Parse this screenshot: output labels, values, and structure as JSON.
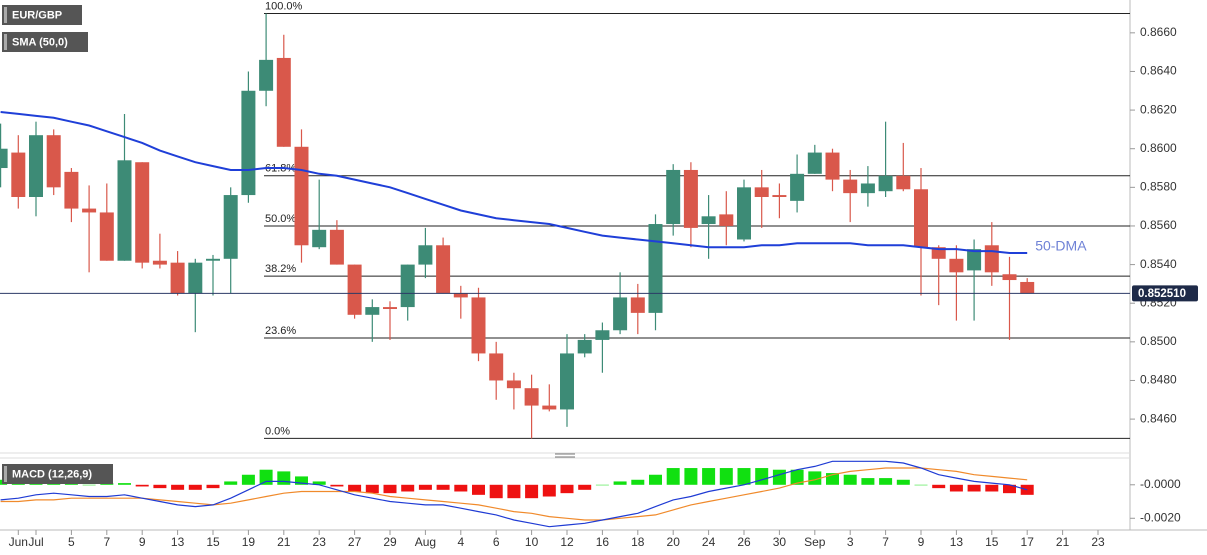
{
  "chart_data": [
    {
      "type": "candlestick",
      "title": "EUR/GBP",
      "categories": [
        null,
        "Jun",
        "Jul",
        null,
        "5",
        null,
        "7",
        null,
        "9",
        null,
        "13",
        null,
        "15",
        null,
        "19",
        null,
        "21",
        null,
        "23",
        null,
        "27",
        null,
        "29",
        null,
        "Aug",
        null,
        "4",
        null,
        "6",
        null,
        "10",
        null,
        "12",
        null,
        "16",
        null,
        "18",
        null,
        "20",
        null,
        "24",
        null,
        "26",
        null,
        "30",
        null,
        "Sep",
        null,
        "3",
        null,
        "7",
        null,
        "9",
        null,
        "13",
        null,
        "15",
        null,
        "17",
        null,
        "21",
        null,
        "23"
      ],
      "open": [
        0.859,
        0.8598,
        0.8575,
        0.8607,
        0.8588,
        0.8569,
        0.8567,
        0.8542,
        0.8593,
        0.8542,
        0.8541,
        0.8525,
        0.8542,
        0.8543,
        0.8576,
        0.863,
        0.8647,
        0.8601,
        0.8549,
        0.8558,
        0.854,
        0.8514,
        0.8518,
        0.8518,
        0.854,
        0.855,
        0.8525,
        0.8523,
        0.8494,
        0.848,
        0.8476,
        0.8467,
        0.8465,
        0.8494,
        0.8501,
        0.8506,
        0.8523,
        0.8515,
        0.8561,
        0.8589,
        0.8561,
        0.8566,
        0.8553,
        0.858,
        0.8576,
        0.8573,
        0.8587,
        0.8598,
        0.8584,
        0.8577,
        0.8578,
        0.8586,
        0.8579,
        0.8549,
        0.8543,
        0.8537,
        0.855,
        0.8535,
        0.8531,
        null,
        null,
        null,
        null
      ],
      "high": [
        0.8613,
        0.8607,
        0.8614,
        0.861,
        0.859,
        0.8581,
        0.8582,
        0.8618,
        0.8593,
        0.8556,
        0.8547,
        0.8543,
        0.8545,
        0.858,
        0.864,
        0.867,
        0.8659,
        0.861,
        0.8584,
        0.8563,
        0.854,
        0.8522,
        0.8521,
        0.854,
        0.8559,
        0.8554,
        0.8529,
        0.8528,
        0.85,
        0.8484,
        0.8483,
        0.8478,
        0.8504,
        0.8504,
        0.851,
        0.8536,
        0.853,
        0.8566,
        0.8592,
        0.8593,
        0.8576,
        0.8578,
        0.8584,
        0.8589,
        0.8582,
        0.8597,
        0.8602,
        0.86,
        0.8589,
        0.8591,
        0.8614,
        0.8603,
        0.859,
        0.855,
        0.855,
        0.8553,
        0.8562,
        0.8544,
        0.8533,
        null,
        null,
        null,
        null
      ],
      "low": [
        0.858,
        0.8569,
        0.8565,
        0.8576,
        0.8562,
        0.8536,
        0.8542,
        0.8542,
        0.8538,
        0.8538,
        0.8524,
        0.8505,
        0.8524,
        0.8525,
        0.8572,
        0.8622,
        0.8601,
        0.8541,
        0.8548,
        0.854,
        0.8512,
        0.85,
        0.8501,
        0.8511,
        0.8533,
        0.8525,
        0.8512,
        0.849,
        0.847,
        0.8465,
        0.845,
        0.8464,
        0.8456,
        0.8492,
        0.8484,
        0.8504,
        0.8504,
        0.8506,
        0.8555,
        0.8549,
        0.8543,
        0.855,
        0.8552,
        0.8559,
        0.8564,
        0.8567,
        0.8587,
        0.8578,
        0.8562,
        0.857,
        0.8575,
        0.8578,
        0.8524,
        0.8519,
        0.8511,
        0.8511,
        0.8529,
        0.8501,
        0.8525,
        null,
        null,
        null,
        null
      ],
      "close": [
        0.86,
        0.8575,
        0.8607,
        0.858,
        0.8569,
        0.8567,
        0.8542,
        0.8594,
        0.8541,
        0.854,
        0.8525,
        0.8541,
        0.8543,
        0.8576,
        0.863,
        0.8646,
        0.8601,
        0.855,
        0.8558,
        0.854,
        0.8514,
        0.8518,
        0.8517,
        0.854,
        0.855,
        0.8525,
        0.8523,
        0.8494,
        0.848,
        0.8476,
        0.8467,
        0.8465,
        0.8494,
        0.8501,
        0.8506,
        0.8523,
        0.8515,
        0.8561,
        0.8589,
        0.8559,
        0.8565,
        0.856,
        0.858,
        0.8575,
        0.8575,
        0.8587,
        0.8598,
        0.8584,
        0.8577,
        0.8582,
        0.8586,
        0.8579,
        0.8549,
        0.8543,
        0.8536,
        0.8548,
        0.8536,
        0.8532,
        0.8525,
        null,
        null,
        null,
        null
      ],
      "up_color": "#3d8b76",
      "down_color": "#d9584b",
      "sma": {
        "name": "SMA (50,0)",
        "color": "#1f3fd8",
        "values": [
          0.8619,
          0.8618,
          0.8617,
          0.8616,
          0.8614,
          0.8612,
          0.8609,
          0.8606,
          0.8603,
          0.8599,
          0.8596,
          0.8593,
          0.8591,
          0.8589,
          0.8589,
          0.859,
          0.859,
          0.8589,
          0.8587,
          0.8586,
          0.8584,
          0.8582,
          0.858,
          0.8577,
          0.8574,
          0.8571,
          0.8568,
          0.8566,
          0.8564,
          0.8563,
          0.8562,
          0.8561,
          0.8559,
          0.8557,
          0.8555,
          0.8554,
          0.8553,
          0.8552,
          0.8551,
          0.855,
          0.8549,
          0.8549,
          0.8549,
          0.855,
          0.855,
          0.8551,
          0.8551,
          0.8551,
          0.8551,
          0.855,
          0.855,
          0.855,
          0.8549,
          0.8548,
          0.8548,
          0.8547,
          0.8547,
          0.8546,
          0.8546,
          null,
          null,
          null,
          null
        ]
      },
      "sma_annotation": "50-DMA",
      "fib_levels": [
        {
          "label": "100.0%",
          "value": 0.867
        },
        {
          "label": "61.8%",
          "value": 0.8586
        },
        {
          "label": "50.0%",
          "value": 0.856
        },
        {
          "label": "38.2%",
          "value": 0.8534
        },
        {
          "label": "23.6%",
          "value": 0.8502
        },
        {
          "label": "0.0%",
          "value": 0.845
        }
      ],
      "last_price": {
        "value": 0.85251,
        "label": "0.852510"
      },
      "ylim": [
        0.8444,
        0.8677
      ],
      "yticks": [
        {
          "value": 0.846,
          "label": "0.8460"
        },
        {
          "value": 0.848,
          "label": "0.8480"
        },
        {
          "value": 0.85,
          "label": "0.8500"
        },
        {
          "value": 0.852,
          "label": "0.8520"
        },
        {
          "value": 0.854,
          "label": "0.8540"
        },
        {
          "value": 0.856,
          "label": "0.8560"
        },
        {
          "value": 0.858,
          "label": "0.8580"
        },
        {
          "value": 0.86,
          "label": "0.8600"
        },
        {
          "value": 0.862,
          "label": "0.8620"
        },
        {
          "value": 0.864,
          "label": "0.8640"
        },
        {
          "value": 0.866,
          "label": "0.8660"
        }
      ],
      "grid": false
    },
    {
      "type": "macd",
      "title": "MACD (12,26,9)",
      "histogram": [
        0.0003,
        0.0001,
        0.0002,
        0.0001,
        0.0001,
        0.0,
        0.0001,
        0.0001,
        -0.0001,
        -0.0002,
        -0.0003,
        -0.0003,
        -0.0002,
        0.0002,
        0.0006,
        0.0009,
        0.0008,
        0.0005,
        0.0002,
        -0.0001,
        -0.0004,
        -0.0005,
        -0.0005,
        -0.0004,
        -0.0003,
        -0.0003,
        -0.0004,
        -0.0006,
        -0.0008,
        -0.0008,
        -0.0008,
        -0.0007,
        -0.0005,
        -0.0003,
        0.0,
        0.0002,
        0.0003,
        0.0006,
        0.001,
        0.001,
        0.001,
        0.001,
        0.001,
        0.001,
        0.0009,
        0.0009,
        0.0008,
        0.0007,
        0.0006,
        0.0004,
        0.0004,
        0.0003,
        0.0,
        -0.0002,
        -0.0004,
        -0.0004,
        -0.0004,
        -0.0005,
        -0.0006
      ],
      "macd": [
        -0.0009,
        -0.0008,
        -0.0006,
        -0.0005,
        -0.0006,
        -0.0007,
        -0.0007,
        -0.0006,
        -0.0008,
        -0.001,
        -0.0012,
        -0.0013,
        -0.0012,
        -0.0008,
        -0.0003,
        0.0002,
        0.0002,
        0.0001,
        0.0,
        -0.0003,
        -0.0006,
        -0.0008,
        -0.001,
        -0.0011,
        -0.0012,
        -0.0012,
        -0.0014,
        -0.0016,
        -0.0018,
        -0.0021,
        -0.0023,
        -0.0025,
        -0.0024,
        -0.0023,
        -0.0021,
        -0.0019,
        -0.0017,
        -0.0013,
        -0.0009,
        -0.0007,
        -0.0004,
        -0.0002,
        0.0,
        0.0003,
        0.0006,
        0.0009,
        0.0011,
        0.0014,
        0.0014,
        0.0014,
        0.0014,
        0.0013,
        0.001,
        0.0006,
        0.0004,
        0.0002,
        0.0001,
        0.0,
        -0.0003
      ],
      "signal": [
        -0.001,
        -0.001,
        -0.0009,
        -0.0009,
        -0.0008,
        -0.0008,
        -0.0008,
        -0.0008,
        -0.0008,
        -0.0009,
        -0.001,
        -0.0011,
        -0.0012,
        -0.0011,
        -0.0009,
        -0.0007,
        -0.0005,
        -0.0004,
        -0.0004,
        -0.0004,
        -0.0004,
        -0.0005,
        -0.0007,
        -0.0008,
        -0.0009,
        -0.001,
        -0.0011,
        -0.0012,
        -0.0014,
        -0.0016,
        -0.0017,
        -0.0019,
        -0.002,
        -0.0021,
        -0.0021,
        -0.002,
        -0.0019,
        -0.0018,
        -0.0015,
        -0.0012,
        -0.001,
        -0.0008,
        -0.0006,
        -0.0004,
        -0.0002,
        0.0001,
        0.0003,
        0.0006,
        0.0008,
        0.0009,
        0.001,
        0.001,
        0.001,
        0.0009,
        0.0008,
        0.0006,
        0.0005,
        0.0004,
        0.0003
      ],
      "macd_color": "#1f3bd4",
      "signal_color": "#f08a2b",
      "up_color": "#11e011",
      "down_color": "#ee1111",
      "ylim": [
        -0.0027,
        0.0016
      ],
      "yticks": [
        {
          "value": 0,
          "label": "-0.0000"
        },
        {
          "value": -0.002,
          "label": "-0.0020"
        }
      ]
    }
  ]
}
